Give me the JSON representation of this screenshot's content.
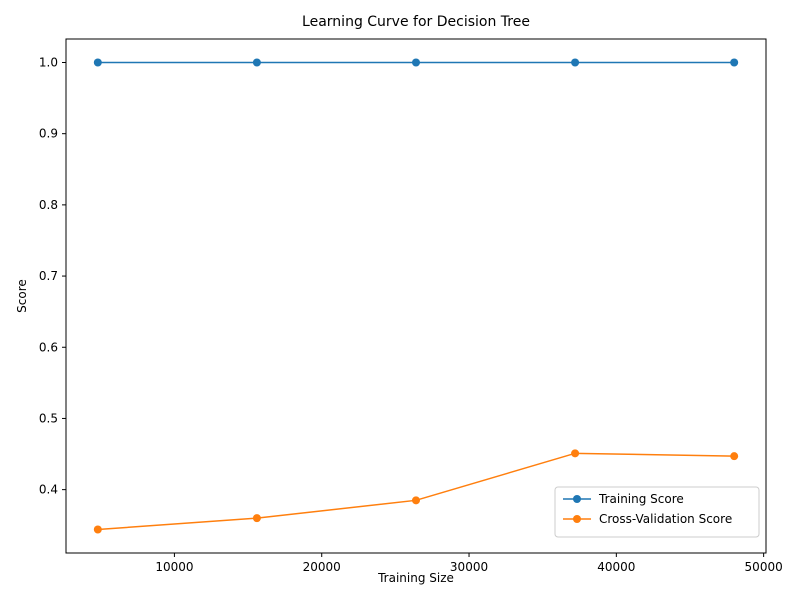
{
  "chart_data": {
    "type": "line",
    "title": "Learning Curve for Decision Tree",
    "xlabel": "Training Size",
    "ylabel": "Score",
    "x": [
      4800,
      15600,
      26400,
      37200,
      48000
    ],
    "series": [
      {
        "name": "Training Score",
        "values": [
          1.0,
          1.0,
          1.0,
          1.0,
          1.0
        ],
        "color": "#1f77b4"
      },
      {
        "name": "Cross-Validation Score",
        "values": [
          0.344,
          0.36,
          0.385,
          0.451,
          0.447
        ],
        "color": "#ff7f0e"
      }
    ],
    "xlim": [
      2640,
      50160
    ],
    "ylim": [
      0.311,
      1.033
    ],
    "x_ticks": [
      10000,
      20000,
      30000,
      40000,
      50000
    ],
    "x_tick_labels": [
      "10000",
      "20000",
      "30000",
      "40000",
      "50000"
    ],
    "y_ticks": [
      0.4,
      0.5,
      0.6,
      0.7,
      0.8,
      0.9,
      1.0
    ],
    "y_tick_labels": [
      "0.4",
      "0.5",
      "0.6",
      "0.7",
      "0.8",
      "0.9",
      "1.0"
    ],
    "grid": false,
    "legend_position": "lower-right",
    "marker": "circle"
  }
}
